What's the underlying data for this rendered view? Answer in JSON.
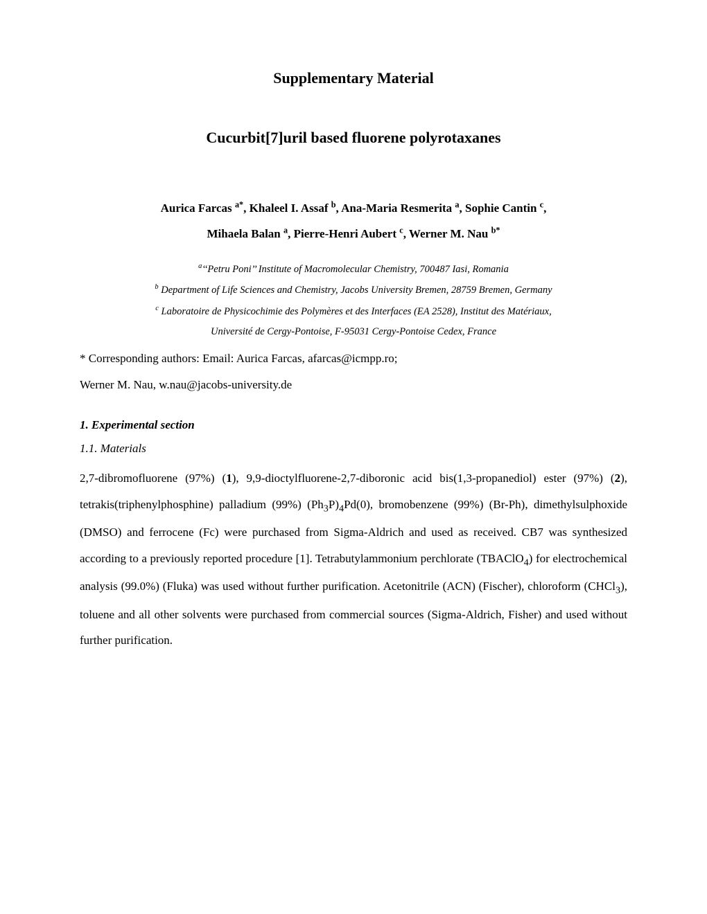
{
  "header": {
    "supplementary": "Supplementary Material",
    "title": "Cucurbit[7]uril based fluorene polyrotaxanes"
  },
  "authors": {
    "line1_pre": "Aurica Farcas ",
    "sup1": "a*",
    "line1_mid1": ", Khaleel I. Assaf ",
    "sup2": "b",
    "line1_mid2": ", Ana-Maria Resmerita ",
    "sup3": "a",
    "line1_mid3": ", Sophie Cantin ",
    "sup4": "c",
    "line1_end": ",",
    "line2_pre": "Mihaela Balan ",
    "sup5": "a",
    "line2_mid1": ", Pierre-Henri Aubert ",
    "sup6": "c",
    "line2_mid2": ", Werner M. Nau ",
    "sup7": "b*"
  },
  "affiliations": {
    "a_sup": "a",
    "a_text": "‘‘Petru Poni’’ Institute of Macromolecular Chemistry, 700487 Iasi, Romania",
    "b_sup": "b",
    "b_text": " Department of Life Sciences and Chemistry, Jacobs University Bremen, 28759 Bremen, Germany",
    "c_sup": "c",
    "c_text": " Laboratoire de Physicochimie des Polymères et des Interfaces (EA 2528), Institut des Matériaux,",
    "c_text2": "Université de Cergy-Pontoise, F-95031 Cergy-Pontoise Cedex, France"
  },
  "corresponding": {
    "line1": "* Corresponding authors: Email: Aurica Farcas, afarcas@icmpp.ro;",
    "line2": "Werner M. Nau, w.nau@jacobs-university.de"
  },
  "sections": {
    "s1": "1. Experimental section",
    "s11": "1.1. Materials"
  },
  "body": {
    "p1a": "2,7-dibromofluorene (97%) (",
    "p1b": "1",
    "p1c": "), 9,9-dioctylfluorene-2,7-diboronic acid bis(1,3-propanediol) ester (97%) (",
    "p1d": "2",
    "p1e": "), tetrakis(triphenylphosphine) palladium (99%) (Ph",
    "p1f": "3",
    "p1g": "P)",
    "p1h": "4",
    "p1i": "Pd(0), bromobenzene (99%) (Br-Ph), dimethylsulphoxide (DMSO) and ferrocene (Fc) were purchased from Sigma-Aldrich and used as received. CB7 was synthesized according to a previously reported procedure [1]. Tetrabutylammonium perchlorate (TBAClO",
    "p1j": "4",
    "p1k": ") for electrochemical analysis (99.0%) (Fluka) was used without further purification. Acetonitrile (ACN) (Fischer), chloroform (CHCl",
    "p1l": "3",
    "p1m": "), toluene and all other solvents were purchased from commercial sources (Sigma-Aldrich, Fisher) and used without further purification."
  }
}
